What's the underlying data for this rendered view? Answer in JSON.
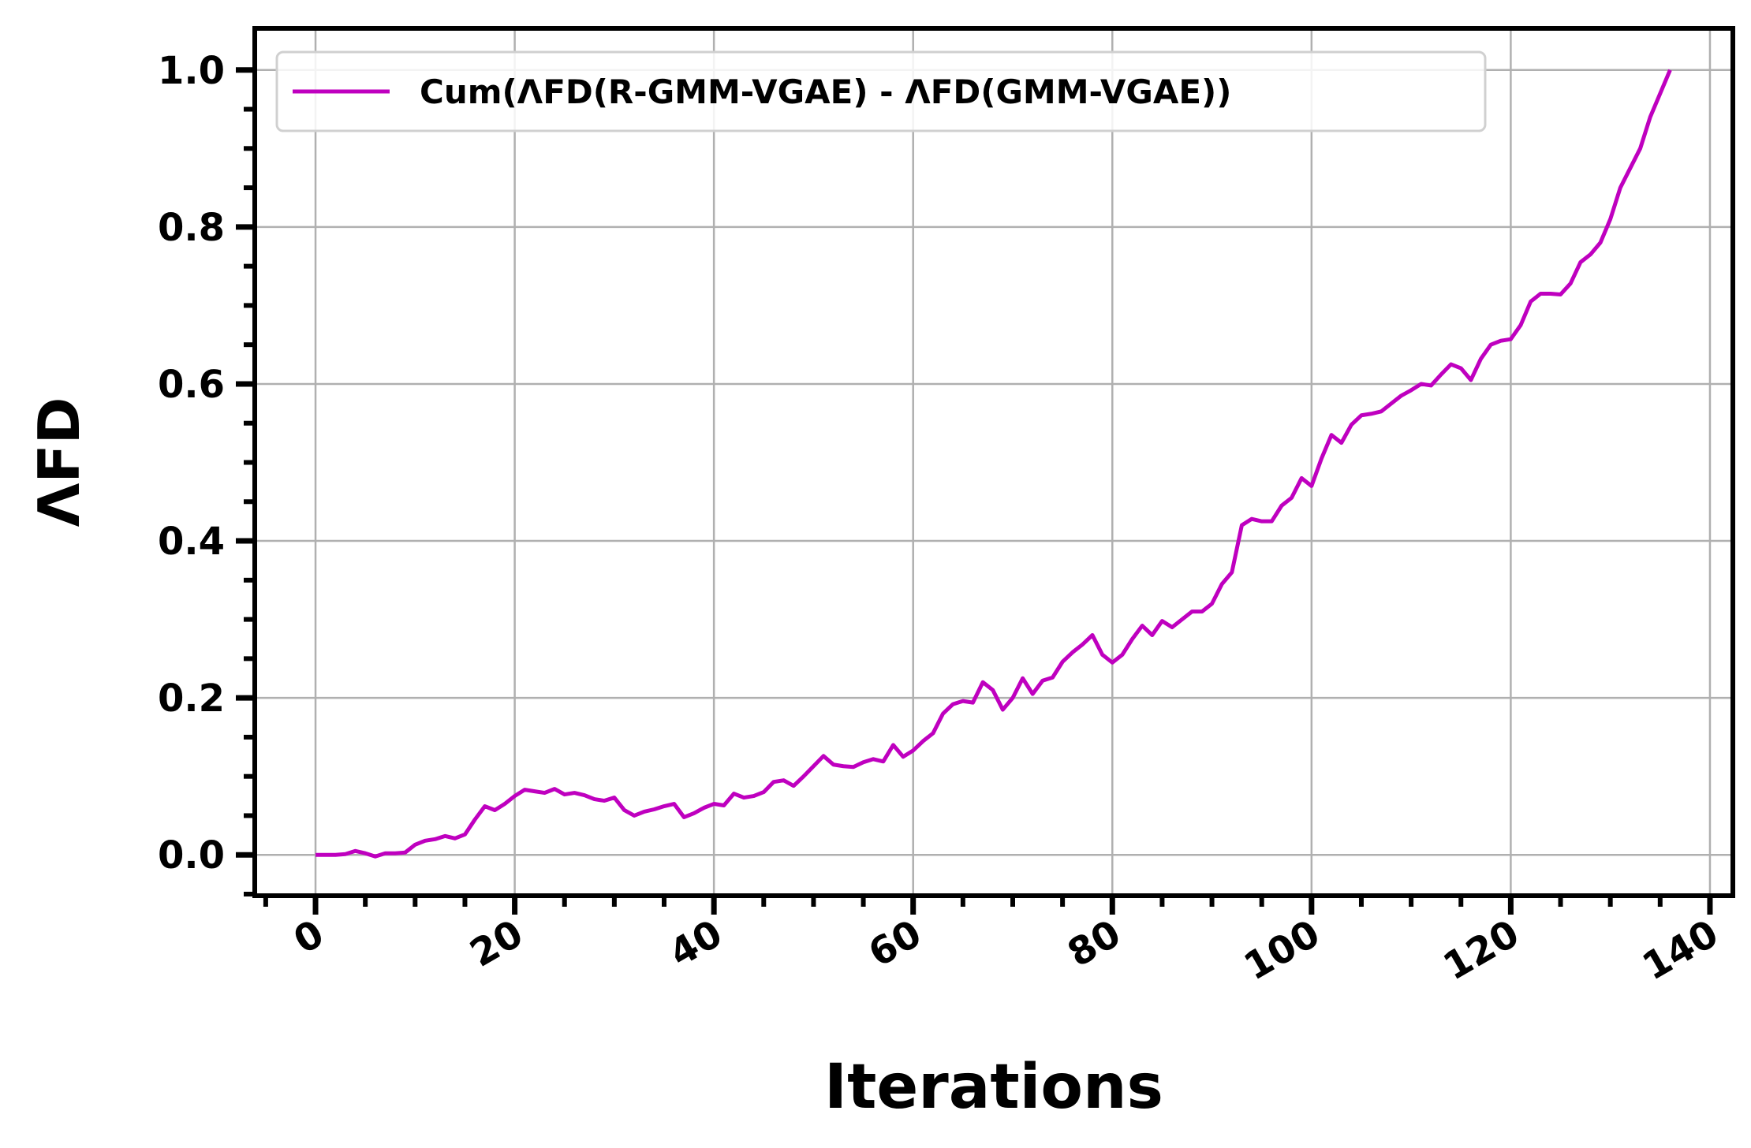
{
  "chart_data": {
    "type": "line",
    "x_label": "Iterations",
    "y_label": "ΛFD",
    "x": [
      0,
      1,
      2,
      3,
      4,
      5,
      6,
      7,
      8,
      9,
      10,
      11,
      12,
      13,
      14,
      15,
      16,
      17,
      18,
      19,
      20,
      21,
      22,
      23,
      24,
      25,
      26,
      27,
      28,
      29,
      30,
      31,
      32,
      33,
      34,
      35,
      36,
      37,
      38,
      39,
      40,
      41,
      42,
      43,
      44,
      45,
      46,
      47,
      48,
      49,
      50,
      51,
      52,
      53,
      54,
      55,
      56,
      57,
      58,
      59,
      60,
      61,
      62,
      63,
      64,
      65,
      66,
      67,
      68,
      69,
      70,
      71,
      72,
      73,
      74,
      75,
      76,
      77,
      78,
      79,
      80,
      81,
      82,
      83,
      84,
      85,
      86,
      87,
      88,
      89,
      90,
      91,
      92,
      93,
      94,
      95,
      96,
      97,
      98,
      99,
      100,
      101,
      102,
      103,
      104,
      105,
      106,
      107,
      108,
      109,
      110,
      111,
      112,
      113,
      114,
      115,
      116,
      117,
      118,
      119,
      120,
      121,
      122,
      123,
      124,
      125,
      126,
      127,
      128,
      129,
      130,
      131,
      132,
      133,
      134,
      135,
      136
    ],
    "series": [
      {
        "name": "Cum(ΛFD(R-GMM-VGAE) - ΛFD(GMM-VGAE))",
        "color": "#bf00bf",
        "values": [
          0,
          0,
          0,
          0.001,
          0.005,
          0.002,
          -0.002,
          0.002,
          0.002,
          0.003,
          0.013,
          0.018,
          0.02,
          0.024,
          0.021,
          0.026,
          0.045,
          0.062,
          0.057,
          0.065,
          0.075,
          0.083,
          0.081,
          0.079,
          0.084,
          0.077,
          0.079,
          0.076,
          0.071,
          0.069,
          0.073,
          0.057,
          0.05,
          0.055,
          0.058,
          0.062,
          0.065,
          0.048,
          0.053,
          0.06,
          0.065,
          0.063,
          0.078,
          0.073,
          0.075,
          0.08,
          0.093,
          0.095,
          0.088,
          0.1,
          0.113,
          0.126,
          0.115,
          0.113,
          0.112,
          0.118,
          0.122,
          0.119,
          0.14,
          0.125,
          0.133,
          0.145,
          0.155,
          0.18,
          0.192,
          0.196,
          0.194,
          0.22,
          0.21,
          0.185,
          0.2,
          0.225,
          0.205,
          0.222,
          0.226,
          0.246,
          0.258,
          0.268,
          0.28,
          0.255,
          0.245,
          0.255,
          0.275,
          0.292,
          0.28,
          0.298,
          0.29,
          0.3,
          0.31,
          0.31,
          0.32,
          0.345,
          0.36,
          0.42,
          0.428,
          0.425,
          0.425,
          0.445,
          0.455,
          0.48,
          0.47,
          0.505,
          0.535,
          0.525,
          0.548,
          0.56,
          0.562,
          0.565,
          0.575,
          0.585,
          0.592,
          0.6,
          0.598,
          0.612,
          0.625,
          0.62,
          0.605,
          0.632,
          0.65,
          0.655,
          0.657,
          0.675,
          0.705,
          0.715,
          0.715,
          0.714,
          0.728,
          0.755,
          0.765,
          0.78,
          0.81,
          0.85,
          0.875,
          0.9,
          0.94,
          0.97,
          1.0
        ]
      }
    ],
    "xlim": [
      -6.1,
      142.3
    ],
    "ylim": [
      -0.052,
      1.053
    ],
    "xticks": [
      0,
      20,
      40,
      60,
      80,
      100,
      120,
      140
    ],
    "yticks": [
      {
        "value": 0,
        "label": "0.0"
      },
      {
        "value": 0.2,
        "label": "0.2"
      },
      {
        "value": 0.4,
        "label": "0.4"
      },
      {
        "value": 0.6,
        "label": "0.6"
      },
      {
        "value": 0.8,
        "label": "0.8"
      },
      {
        "value": 1,
        "label": "1.0"
      }
    ],
    "xminorticks": [
      -5,
      0,
      5,
      10,
      15,
      20,
      25,
      30,
      35,
      40,
      45,
      50,
      55,
      60,
      65,
      70,
      75,
      80,
      85,
      90,
      95,
      100,
      105,
      110,
      115,
      120,
      125,
      130,
      135,
      140
    ],
    "yminorticks": [
      -0.05,
      0,
      0.05,
      0.1,
      0.15,
      0.2,
      0.25,
      0.3,
      0.35,
      0.4,
      0.45,
      0.5,
      0.55,
      0.6,
      0.65,
      0.7,
      0.75,
      0.8,
      0.85,
      0.9,
      0.95,
      1.0
    ],
    "grid": true,
    "legend": "upper left"
  }
}
